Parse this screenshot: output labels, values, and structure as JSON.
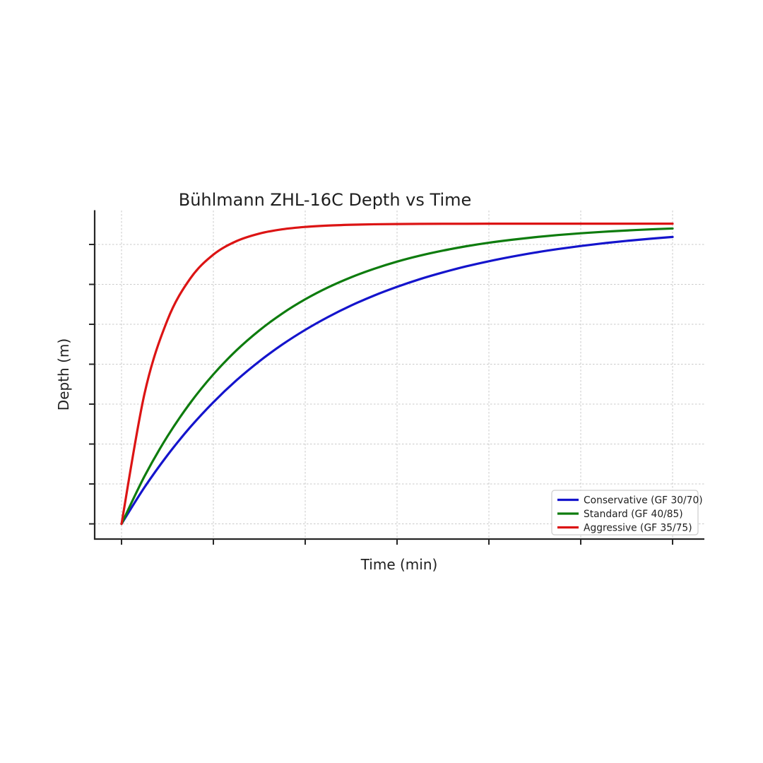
{
  "figure": {
    "background": "#ffffff"
  },
  "colors": {
    "text": "#1f1f1f",
    "axis": "#262626",
    "grid": "#c9c9c9",
    "legend_border": "#cccccc",
    "legend_background": "#ffffff"
  },
  "chart_data": {
    "type": "line",
    "title": "Bühlmann ZHL-16C Depth vs Time",
    "xlabel": "Time (min)",
    "ylabel": "Depth (m)",
    "grid": {
      "visible": true,
      "style": "dashed"
    },
    "x_axis": {
      "ticks_min": [
        0,
        20,
        40,
        60,
        80,
        100,
        120
      ],
      "tick_labels_visible": false,
      "lim": [
        -5.85,
        126.92
      ]
    },
    "y_axis": {
      "ticks_depth_m": [
        5,
        10,
        15,
        20,
        25,
        30,
        35,
        40
      ],
      "tick_labels_visible": false,
      "inverted": true,
      "lim_depth_m": [
        0.75,
        41.9
      ]
    },
    "x": [
      0,
      5,
      10,
      15,
      20,
      25,
      30,
      35,
      40,
      45,
      50,
      55,
      60,
      65,
      70,
      75,
      80,
      85,
      90,
      95,
      100,
      105,
      110,
      115,
      120
    ],
    "series": [
      {
        "name": "Conservative (GF 30/70)",
        "color": "#1414cc",
        "depth_m": [
          40,
          35.42,
          31.4,
          27.86,
          24.76,
          22.03,
          19.64,
          17.54,
          15.7,
          14.08,
          12.65,
          11.4,
          10.31,
          9.34,
          8.5,
          7.75,
          7.1,
          6.53,
          6.02,
          5.58,
          5.19,
          4.85,
          4.55,
          4.29,
          4.06
        ]
      },
      {
        "name": "Standard (GF 40/85)",
        "color": "#0e7c0e",
        "depth_m": [
          40,
          34.04,
          29.03,
          24.82,
          21.27,
          18.28,
          15.77,
          13.65,
          11.87,
          10.37,
          9.11,
          8.05,
          7.15,
          6.4,
          5.77,
          5.23,
          4.78,
          4.41,
          4.09,
          3.82,
          3.6,
          3.41,
          3.25,
          3.11,
          3.0
        ]
      },
      {
        "name": "Aggressive (GF 35/75)",
        "color": "#dc1414",
        "depth_m": [
          40,
          23.7,
          14.47,
          9.24,
          6.27,
          4.59,
          3.64,
          3.1,
          2.8,
          2.63,
          2.53,
          2.47,
          2.44,
          2.42,
          2.41,
          2.41,
          2.4,
          2.4,
          2.4,
          2.4,
          2.4,
          2.4,
          2.4,
          2.4,
          2.4
        ]
      }
    ],
    "legend": {
      "position": "lower right"
    }
  }
}
